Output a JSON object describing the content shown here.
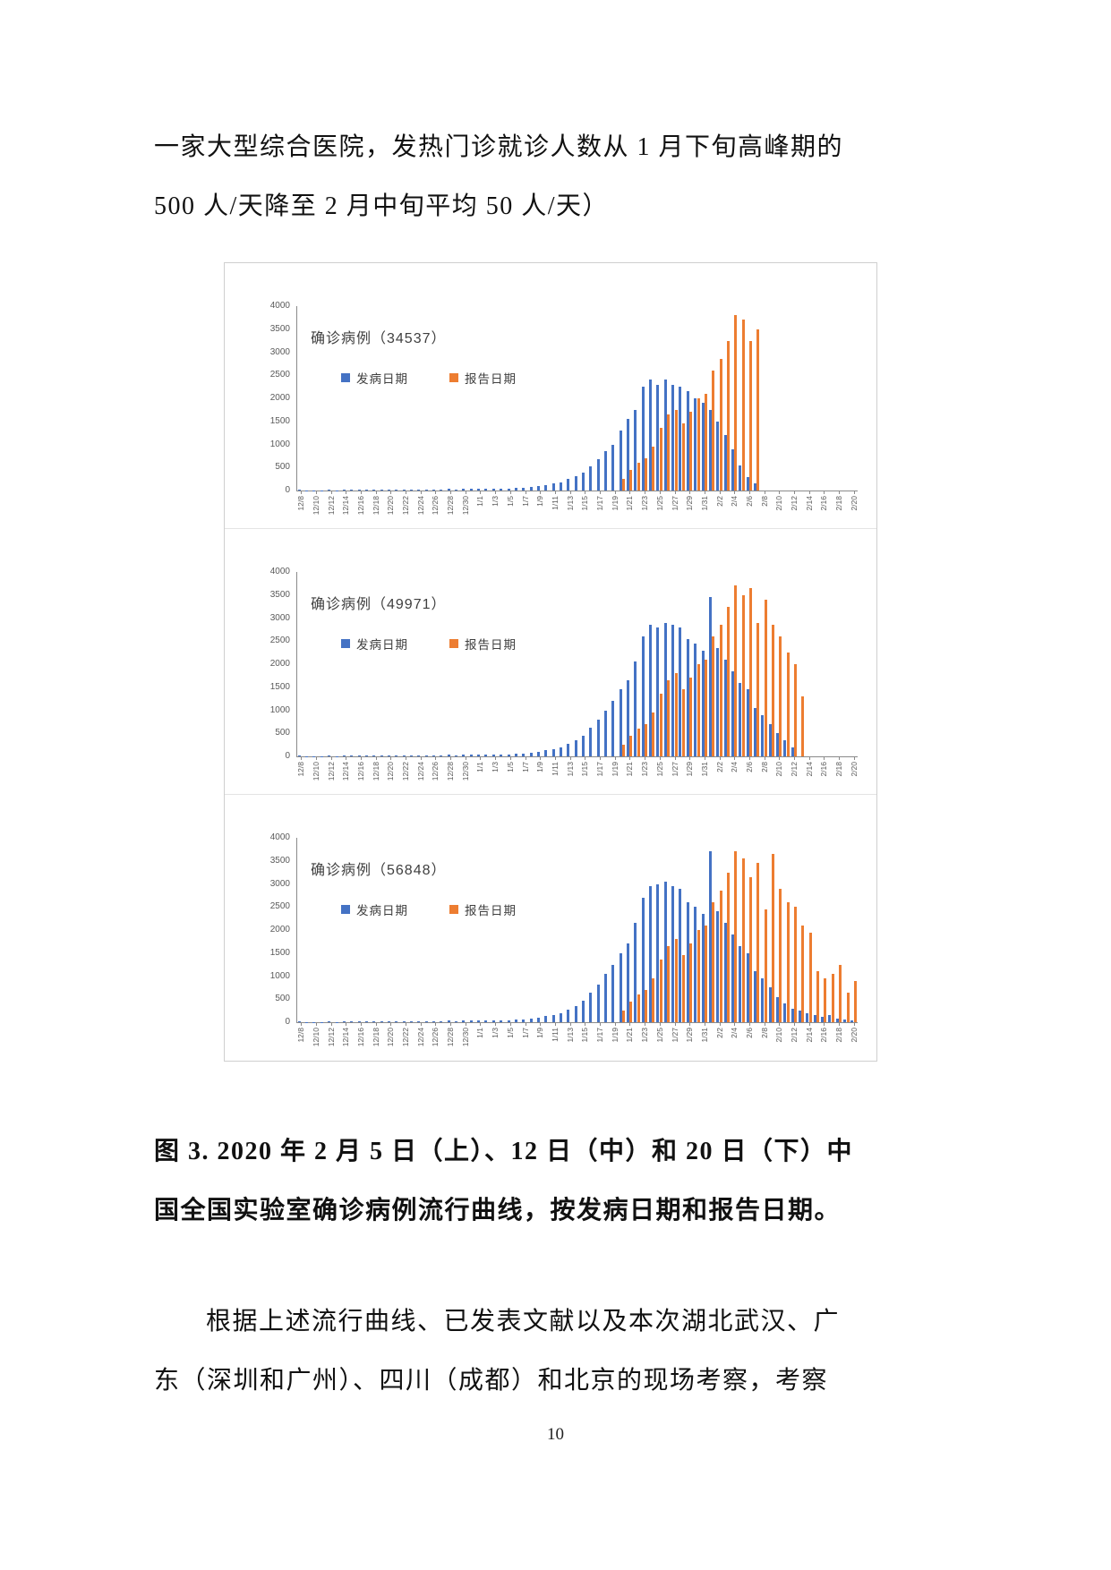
{
  "page": {
    "paragraph1": {
      "lines": [
        "一家大型综合医院，发热门诊就诊人数从 1 月下旬高峰期的",
        "500 人/天降至 2 月中旬平均 50 人/天）"
      ]
    },
    "caption": {
      "lines": [
        "图 3. 2020 年 2 月 5 日（上）、12 日（中）和 20 日（下）中",
        "国全国实验室确诊病例流行曲线，按发病日期和报告日期。"
      ]
    },
    "paragraph2": {
      "lines": [
        "根据上述流行曲线、已发表文献以及本次湖北武汉、广",
        "东（深圳和广州）、四川（成都）和北京的现场考察，考察"
      ]
    },
    "page_number": "10"
  },
  "chart_data": [
    {
      "type": "bar",
      "title": "确诊病例（34537）",
      "total": 34537,
      "grid": false,
      "legend_position": "top-left",
      "ylim": [
        0,
        4000
      ],
      "yticks": [
        0,
        500,
        1000,
        1500,
        2000,
        2500,
        3000,
        3500,
        4000
      ],
      "x_tick_every": 2,
      "categories": [
        "12/8",
        "12/9",
        "12/10",
        "12/11",
        "12/12",
        "12/13",
        "12/14",
        "12/15",
        "12/16",
        "12/17",
        "12/18",
        "12/19",
        "12/20",
        "12/21",
        "12/22",
        "12/23",
        "12/24",
        "12/25",
        "12/26",
        "12/27",
        "12/28",
        "12/29",
        "12/30",
        "12/31",
        "1/1",
        "1/2",
        "1/3",
        "1/4",
        "1/5",
        "1/6",
        "1/7",
        "1/8",
        "1/9",
        "1/10",
        "1/11",
        "1/12",
        "1/13",
        "1/14",
        "1/15",
        "1/16",
        "1/17",
        "1/18",
        "1/19",
        "1/20",
        "1/21",
        "1/22",
        "1/23",
        "1/24",
        "1/25",
        "1/26",
        "1/27",
        "1/28",
        "1/29",
        "1/30",
        "1/31",
        "2/1",
        "2/2",
        "2/3",
        "2/4",
        "2/5",
        "2/6",
        "2/7",
        "2/8",
        "2/9",
        "2/10",
        "2/11",
        "2/12",
        "2/13",
        "2/14",
        "2/15",
        "2/16",
        "2/17",
        "2/18",
        "2/19",
        "2/20"
      ],
      "series": [
        {
          "name": "发病日期",
          "color": "#4472C4",
          "values": [
            10,
            5,
            8,
            5,
            10,
            8,
            12,
            10,
            15,
            12,
            18,
            15,
            20,
            18,
            22,
            20,
            25,
            22,
            28,
            25,
            30,
            28,
            35,
            40,
            35,
            30,
            40,
            35,
            45,
            50,
            60,
            80,
            90,
            120,
            150,
            180,
            250,
            310,
            380,
            520,
            680,
            850,
            1000,
            1300,
            1550,
            1750,
            2250,
            2400,
            2300,
            2400,
            2300,
            2250,
            2150,
            2000,
            1900,
            1750,
            1500,
            1200,
            900,
            550,
            300,
            150,
            0,
            0,
            0,
            0,
            0,
            0,
            0,
            0,
            0,
            0,
            0,
            0,
            0
          ]
        },
        {
          "name": "报告日期",
          "color": "#ED7D31",
          "values": [
            0,
            0,
            0,
            0,
            0,
            0,
            0,
            0,
            0,
            0,
            0,
            0,
            0,
            0,
            0,
            0,
            0,
            0,
            0,
            0,
            0,
            0,
            0,
            0,
            0,
            0,
            0,
            0,
            0,
            0,
            0,
            0,
            0,
            0,
            0,
            0,
            0,
            0,
            0,
            0,
            0,
            0,
            0,
            250,
            450,
            600,
            700,
            950,
            1350,
            1650,
            1750,
            1450,
            1700,
            2000,
            2100,
            2600,
            2850,
            3250,
            3800,
            3700,
            3250,
            3500,
            0,
            0,
            0,
            0,
            0,
            0,
            0,
            0,
            0,
            0,
            0,
            0,
            0
          ]
        }
      ]
    },
    {
      "type": "bar",
      "title": "确诊病例（49971）",
      "total": 49971,
      "grid": false,
      "legend_position": "top-left",
      "ylim": [
        0,
        4000
      ],
      "yticks": [
        0,
        500,
        1000,
        1500,
        2000,
        2500,
        3000,
        3500,
        4000
      ],
      "x_tick_every": 2,
      "categories": [
        "12/8",
        "12/9",
        "12/10",
        "12/11",
        "12/12",
        "12/13",
        "12/14",
        "12/15",
        "12/16",
        "12/17",
        "12/18",
        "12/19",
        "12/20",
        "12/21",
        "12/22",
        "12/23",
        "12/24",
        "12/25",
        "12/26",
        "12/27",
        "12/28",
        "12/29",
        "12/30",
        "12/31",
        "1/1",
        "1/2",
        "1/3",
        "1/4",
        "1/5",
        "1/6",
        "1/7",
        "1/8",
        "1/9",
        "1/10",
        "1/11",
        "1/12",
        "1/13",
        "1/14",
        "1/15",
        "1/16",
        "1/17",
        "1/18",
        "1/19",
        "1/20",
        "1/21",
        "1/22",
        "1/23",
        "1/24",
        "1/25",
        "1/26",
        "1/27",
        "1/28",
        "1/29",
        "1/30",
        "1/31",
        "2/1",
        "2/2",
        "2/3",
        "2/4",
        "2/5",
        "2/6",
        "2/7",
        "2/8",
        "2/9",
        "2/10",
        "2/11",
        "2/12",
        "2/13",
        "2/14",
        "2/15",
        "2/16",
        "2/17",
        "2/18",
        "2/19",
        "2/20"
      ],
      "series": [
        {
          "name": "发病日期",
          "color": "#4472C4",
          "values": [
            10,
            5,
            8,
            5,
            10,
            8,
            12,
            10,
            15,
            12,
            18,
            15,
            20,
            18,
            22,
            20,
            25,
            22,
            28,
            25,
            30,
            28,
            35,
            40,
            35,
            30,
            40,
            35,
            45,
            55,
            65,
            85,
            100,
            130,
            160,
            200,
            280,
            350,
            450,
            620,
            800,
            1000,
            1200,
            1450,
            1650,
            2050,
            2600,
            2850,
            2800,
            2900,
            2850,
            2800,
            2550,
            2450,
            2300,
            3450,
            2350,
            2100,
            1850,
            1600,
            1450,
            1050,
            900,
            700,
            500,
            350,
            200,
            0,
            0,
            0,
            0,
            0,
            0,
            0,
            0
          ]
        },
        {
          "name": "报告日期",
          "color": "#ED7D31",
          "values": [
            0,
            0,
            0,
            0,
            0,
            0,
            0,
            0,
            0,
            0,
            0,
            0,
            0,
            0,
            0,
            0,
            0,
            0,
            0,
            0,
            0,
            0,
            0,
            0,
            0,
            0,
            0,
            0,
            0,
            0,
            0,
            0,
            0,
            0,
            0,
            0,
            0,
            0,
            0,
            0,
            0,
            0,
            0,
            250,
            450,
            600,
            700,
            950,
            1350,
            1650,
            1800,
            1450,
            1700,
            2000,
            2100,
            2600,
            2850,
            3250,
            3700,
            3500,
            3650,
            2900,
            3400,
            2850,
            2600,
            2250,
            2000,
            1300,
            0,
            0,
            0,
            0,
            0,
            0,
            0
          ]
        }
      ]
    },
    {
      "type": "bar",
      "title": "确诊病例（56848）",
      "total": 56848,
      "grid": false,
      "legend_position": "top-left",
      "ylim": [
        0,
        4000
      ],
      "yticks": [
        0,
        500,
        1000,
        1500,
        2000,
        2500,
        3000,
        3500,
        4000
      ],
      "x_tick_every": 2,
      "categories": [
        "12/8",
        "12/9",
        "12/10",
        "12/11",
        "12/12",
        "12/13",
        "12/14",
        "12/15",
        "12/16",
        "12/17",
        "12/18",
        "12/19",
        "12/20",
        "12/21",
        "12/22",
        "12/23",
        "12/24",
        "12/25",
        "12/26",
        "12/27",
        "12/28",
        "12/29",
        "12/30",
        "12/31",
        "1/1",
        "1/2",
        "1/3",
        "1/4",
        "1/5",
        "1/6",
        "1/7",
        "1/8",
        "1/9",
        "1/10",
        "1/11",
        "1/12",
        "1/13",
        "1/14",
        "1/15",
        "1/16",
        "1/17",
        "1/18",
        "1/19",
        "1/20",
        "1/21",
        "1/22",
        "1/23",
        "1/24",
        "1/25",
        "1/26",
        "1/27",
        "1/28",
        "1/29",
        "1/30",
        "1/31",
        "2/1",
        "2/2",
        "2/3",
        "2/4",
        "2/5",
        "2/6",
        "2/7",
        "2/8",
        "2/9",
        "2/10",
        "2/11",
        "2/12",
        "2/13",
        "2/14",
        "2/15",
        "2/16",
        "2/17",
        "2/18",
        "2/19",
        "2/20"
      ],
      "series": [
        {
          "name": "发病日期",
          "color": "#4472C4",
          "values": [
            10,
            5,
            8,
            5,
            10,
            8,
            12,
            10,
            15,
            12,
            18,
            15,
            20,
            18,
            22,
            20,
            25,
            22,
            28,
            25,
            30,
            28,
            35,
            40,
            35,
            30,
            40,
            35,
            45,
            55,
            65,
            85,
            100,
            130,
            160,
            200,
            280,
            350,
            460,
            640,
            820,
            1050,
            1250,
            1500,
            1700,
            2150,
            2700,
            2950,
            3000,
            3050,
            2950,
            2900,
            2600,
            2500,
            2350,
            3700,
            2400,
            2150,
            1900,
            1650,
            1500,
            1100,
            950,
            750,
            550,
            400,
            300,
            250,
            200,
            150,
            120,
            150,
            80,
            50,
            30
          ]
        },
        {
          "name": "报告日期",
          "color": "#ED7D31",
          "values": [
            0,
            0,
            0,
            0,
            0,
            0,
            0,
            0,
            0,
            0,
            0,
            0,
            0,
            0,
            0,
            0,
            0,
            0,
            0,
            0,
            0,
            0,
            0,
            0,
            0,
            0,
            0,
            0,
            0,
            0,
            0,
            0,
            0,
            0,
            0,
            0,
            0,
            0,
            0,
            0,
            0,
            0,
            0,
            250,
            450,
            600,
            700,
            950,
            1350,
            1650,
            1800,
            1450,
            1700,
            2000,
            2100,
            2600,
            2850,
            3250,
            3700,
            3550,
            3150,
            3450,
            2450,
            3650,
            2900,
            2600,
            2500,
            2100,
            1950,
            1100,
            950,
            1050,
            1250,
            650,
            900
          ]
        }
      ]
    }
  ]
}
